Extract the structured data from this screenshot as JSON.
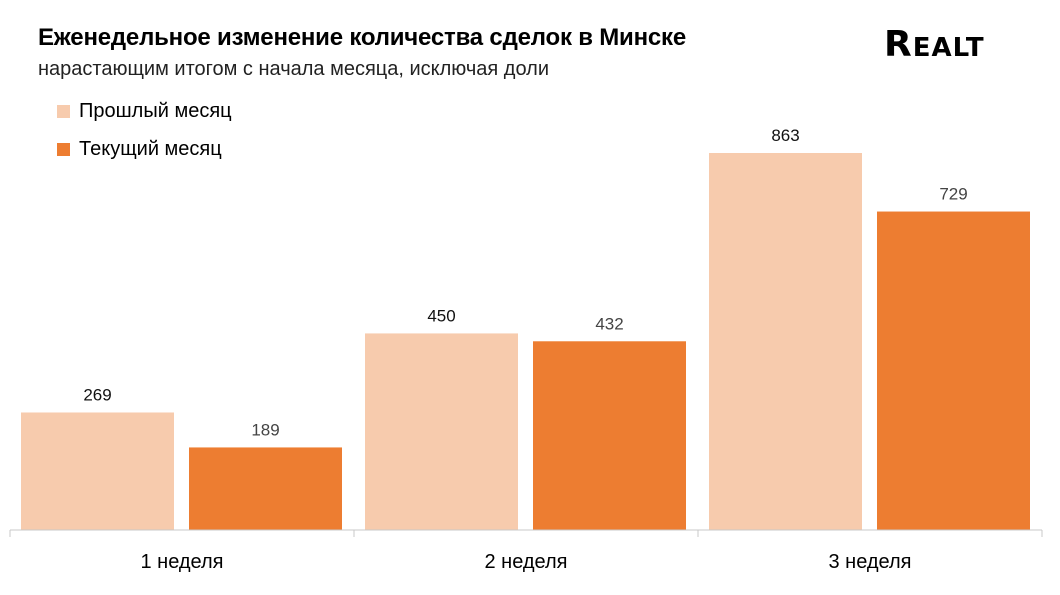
{
  "header": {
    "title": "Еженедельное изменение количества сделок в Минске",
    "subtitle": "нарастающим итогом с начала месяца, исключая доли",
    "logo": "REALT"
  },
  "colors": {
    "previous": "#F7CBAD",
    "current": "#ED7D31"
  },
  "chart_data": {
    "type": "bar",
    "title": "Еженедельное изменение количества сделок в Минске",
    "subtitle": "нарастающим итогом с начала месяца, исключая доли",
    "categories": [
      "1 неделя",
      "2 неделя",
      "3 неделя"
    ],
    "series": [
      {
        "name": "Прошлый месяц",
        "values": [
          269,
          450,
          863
        ],
        "color": "#F7CBAD"
      },
      {
        "name": "Текущий месяц",
        "values": [
          189,
          432,
          729
        ],
        "color": "#ED7D31"
      }
    ],
    "ylim": [
      0,
      1000
    ],
    "grid": false,
    "legend_position": "top-left"
  }
}
